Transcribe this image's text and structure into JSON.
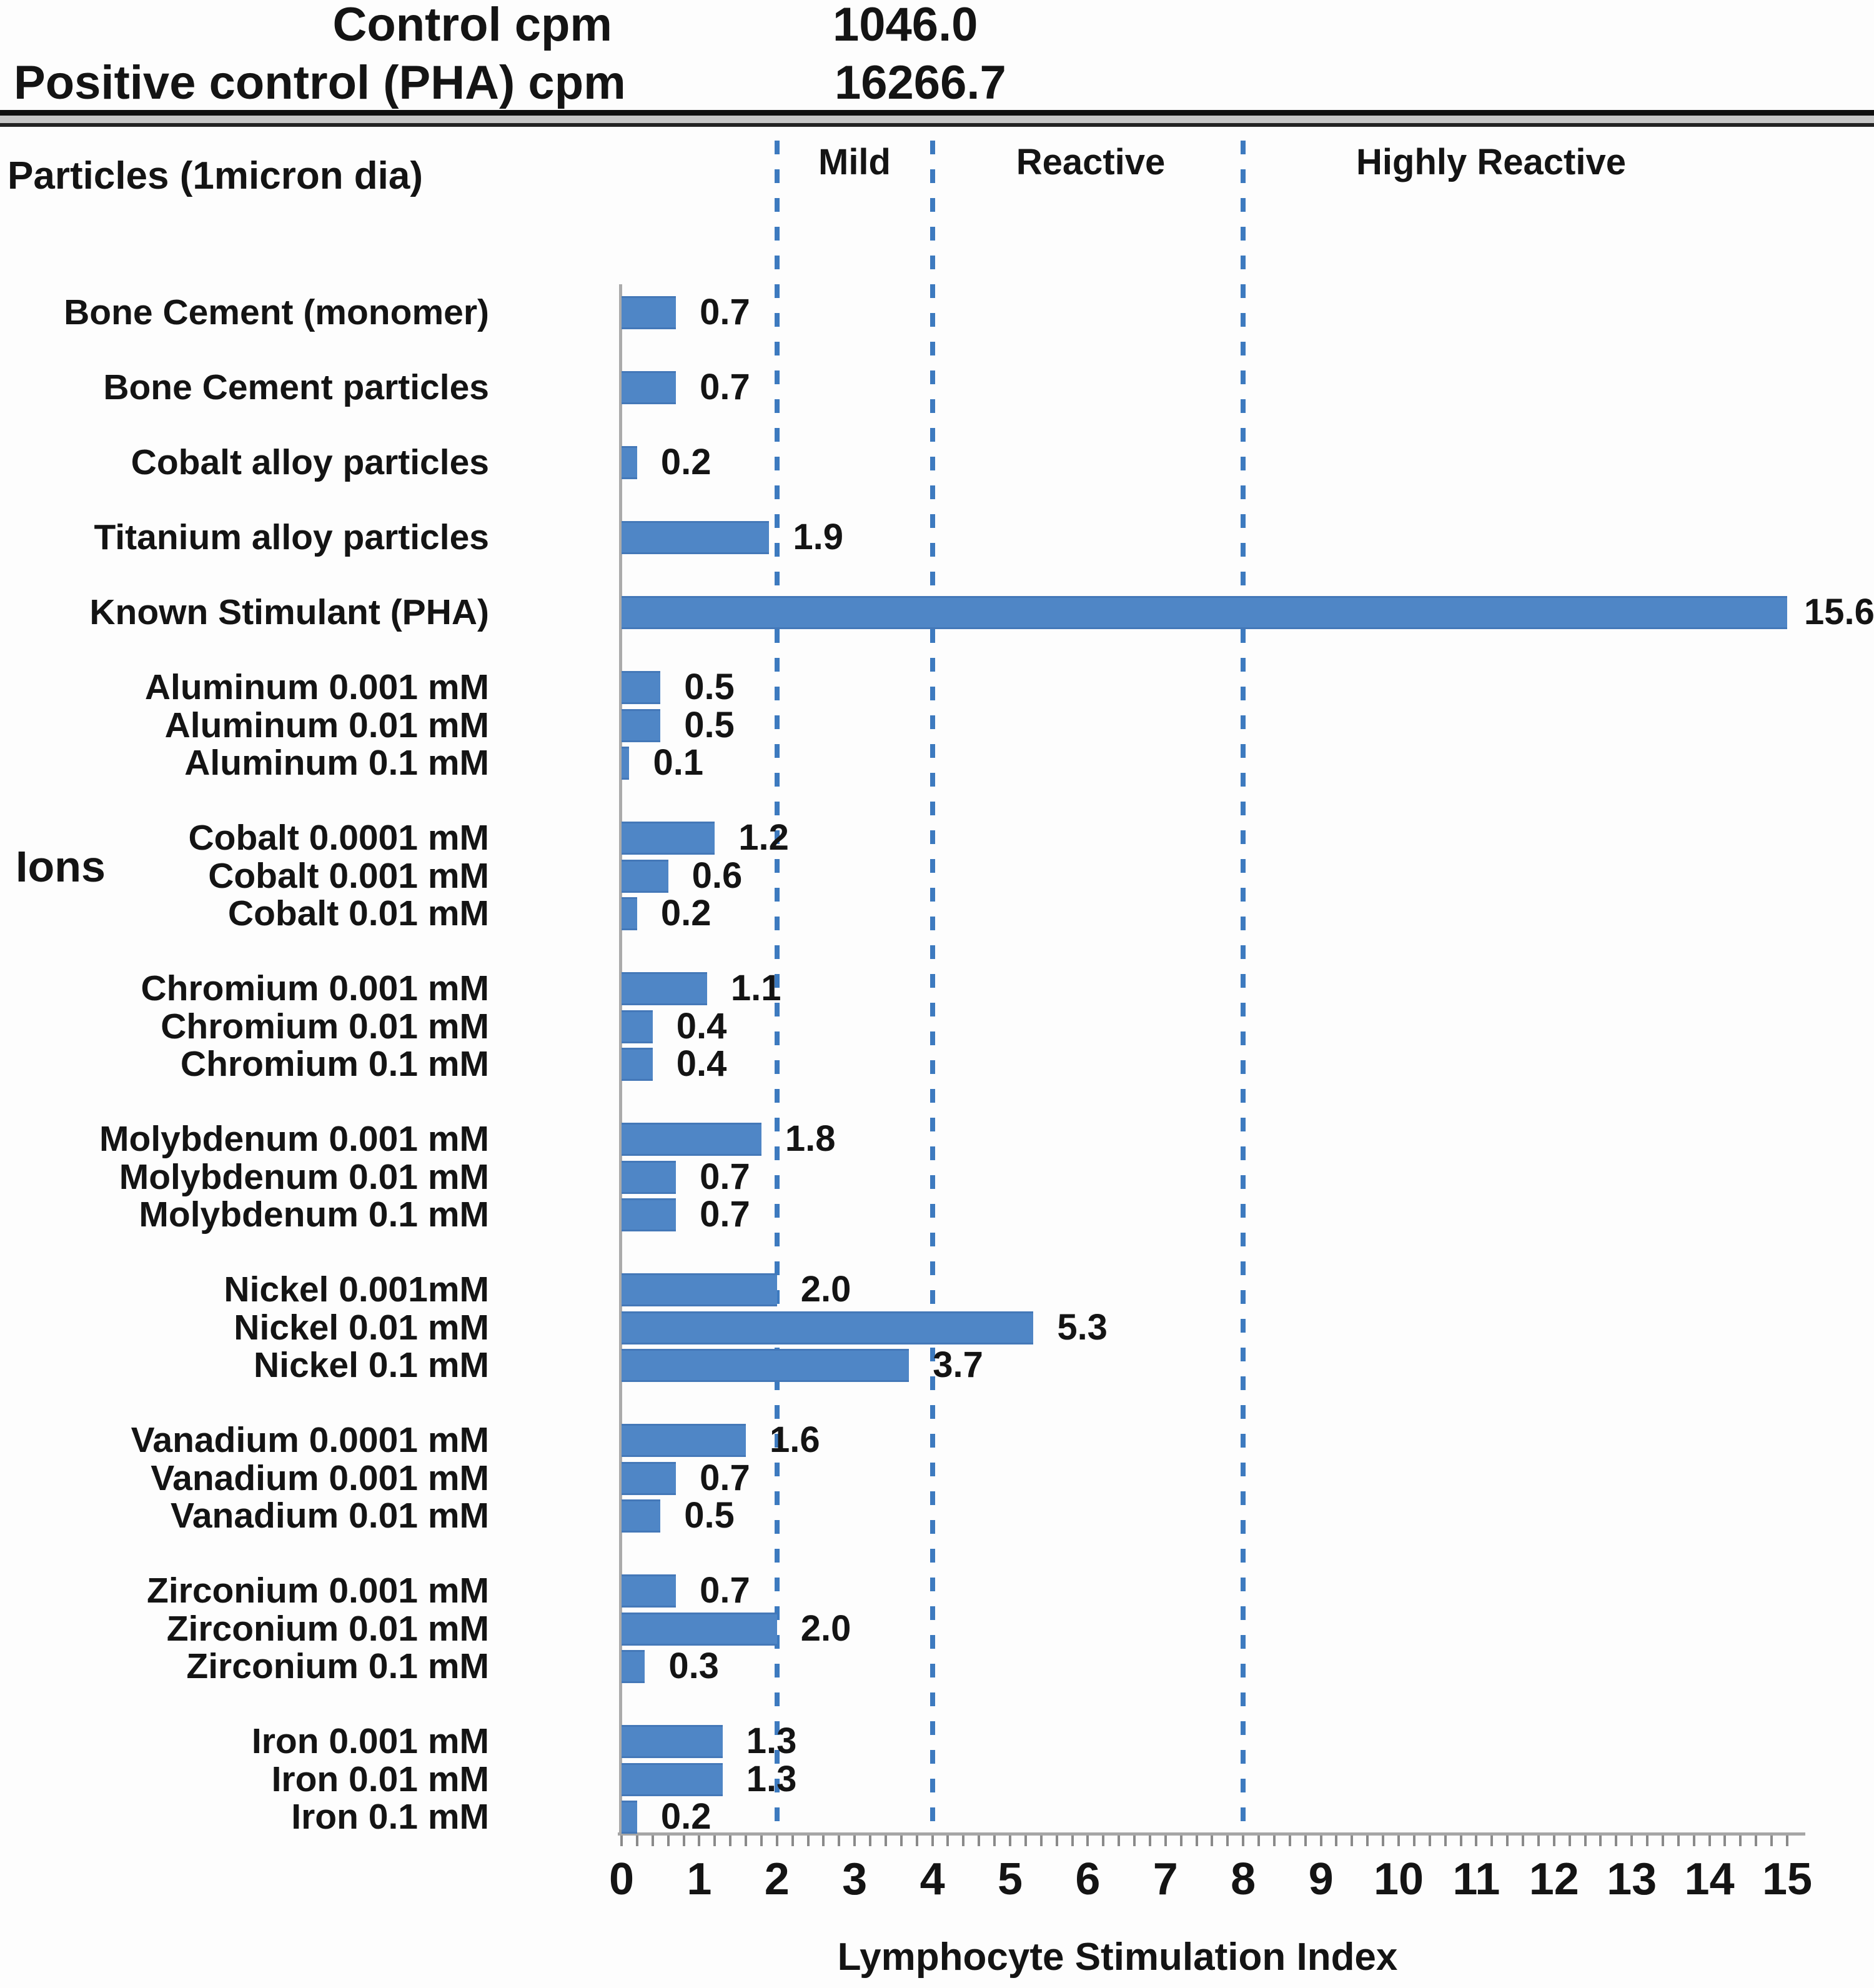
{
  "header": {
    "rows": [
      {
        "label": "Control cpm",
        "value": "1046.0"
      },
      {
        "label": "Positive control (PHA) cpm",
        "value": "16266.7"
      }
    ]
  },
  "chart_data": {
    "type": "bar",
    "left_heading": "Particles (1micron dia)",
    "side_label": "Ions",
    "xlabel": "Lymphocyte Stimulation Index",
    "xlim": [
      0,
      15
    ],
    "x_tick_labels": [
      "0",
      "1",
      "2",
      "3",
      "4",
      "5",
      "6",
      "7",
      "8",
      "9",
      "10",
      "11",
      "12",
      "13",
      "14",
      "15"
    ],
    "zone_lines": [
      {
        "label": "Mild",
        "x": 2
      },
      {
        "label": "Reactive",
        "x": 4
      },
      {
        "label": "Highly Reactive",
        "x": 8
      }
    ],
    "bar_color": "#4f86c6",
    "dash_color": "#3d7abf",
    "axis_color": "#a6a6a6",
    "groups": [
      {
        "items": [
          {
            "label": "Bone Cement (monomer)",
            "value": 0.7
          }
        ]
      },
      {
        "items": [
          {
            "label": "Bone Cement particles",
            "value": 0.7
          }
        ]
      },
      {
        "items": [
          {
            "label": "Cobalt alloy particles",
            "value": 0.2
          }
        ]
      },
      {
        "items": [
          {
            "label": "Titanium alloy particles",
            "value": 1.9
          }
        ]
      },
      {
        "items": [
          {
            "label": "Known Stimulant (PHA)",
            "value": 15.6
          }
        ]
      },
      {
        "items": [
          {
            "label": "Aluminum 0.001 mM",
            "value": 0.5
          },
          {
            "label": "Aluminum 0.01 mM",
            "value": 0.5
          },
          {
            "label": "Aluminum 0.1 mM",
            "value": 0.1
          }
        ]
      },
      {
        "items": [
          {
            "label": "Cobalt 0.0001 mM",
            "value": 1.2
          },
          {
            "label": "Cobalt 0.001 mM",
            "value": 0.6
          },
          {
            "label": "Cobalt 0.01 mM",
            "value": 0.2
          }
        ]
      },
      {
        "items": [
          {
            "label": "Chromium 0.001 mM",
            "value": 1.1
          },
          {
            "label": "Chromium 0.01 mM",
            "value": 0.4
          },
          {
            "label": "Chromium 0.1 mM",
            "value": 0.4
          }
        ]
      },
      {
        "items": [
          {
            "label": "Molybdenum 0.001 mM",
            "value": 1.8
          },
          {
            "label": "Molybdenum 0.01 mM",
            "value": 0.7
          },
          {
            "label": "Molybdenum 0.1 mM",
            "value": 0.7
          }
        ]
      },
      {
        "items": [
          {
            "label": "Nickel 0.001mM",
            "value": 2.0
          },
          {
            "label": "Nickel 0.01 mM",
            "value": 5.3
          },
          {
            "label": "Nickel 0.1 mM",
            "value": 3.7
          }
        ]
      },
      {
        "items": [
          {
            "label": "Vanadium 0.0001 mM",
            "value": 1.6
          },
          {
            "label": "Vanadium 0.001 mM",
            "value": 0.7
          },
          {
            "label": "Vanadium 0.01 mM",
            "value": 0.5
          }
        ]
      },
      {
        "items": [
          {
            "label": "Zirconium 0.001 mM",
            "value": 0.7
          },
          {
            "label": "Zirconium 0.01 mM",
            "value": 2.0
          },
          {
            "label": "Zirconium 0.1 mM",
            "value": 0.3
          }
        ]
      },
      {
        "items": [
          {
            "label": "Iron 0.001 mM",
            "value": 1.3
          },
          {
            "label": "Iron 0.01 mM",
            "value": 1.3
          },
          {
            "label": "Iron 0.1 mM",
            "value": 0.2
          }
        ]
      }
    ]
  }
}
